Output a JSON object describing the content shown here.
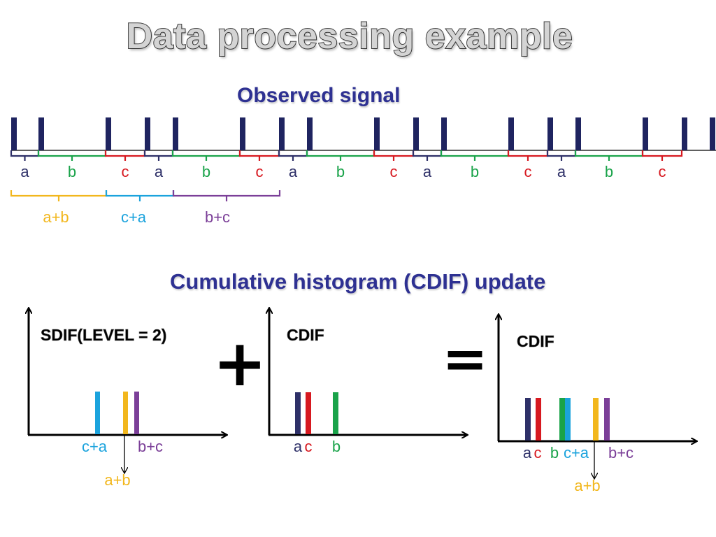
{
  "title": "Data processing example",
  "observed_signal": {
    "heading": "Observed signal",
    "interval_labels": [
      "a",
      "b",
      "c",
      "a",
      "b",
      "c",
      "a",
      "b",
      "c",
      "a",
      "b",
      "c",
      "a",
      "b",
      "c"
    ],
    "group_labels": [
      "a+b",
      "c+a",
      "b+c"
    ]
  },
  "cdif_update": {
    "heading": "Cumulative histogram (CDIF) update",
    "sdif_panel": {
      "title": "SDIF(LEVEL = 2)",
      "labels": [
        "c+a",
        "b+c",
        "a+b"
      ]
    },
    "plus_symbol": "+",
    "cdif_panel": {
      "title": "CDIF",
      "labels": [
        "a",
        "c",
        "b"
      ]
    },
    "equals_symbol": "=",
    "result_panel": {
      "title": "CDIF",
      "labels": [
        "a",
        "c",
        "b",
        "c+a",
        "b+c",
        "a+b"
      ]
    }
  },
  "colors": {
    "a": "#2e3068",
    "b": "#1aa34a",
    "c": "#d71920",
    "a+b": "#f2b71d",
    "c+a": "#1ba3dd",
    "b+c": "#7b3f98",
    "pulse": "#1f2460",
    "heading": "#2e3192"
  }
}
